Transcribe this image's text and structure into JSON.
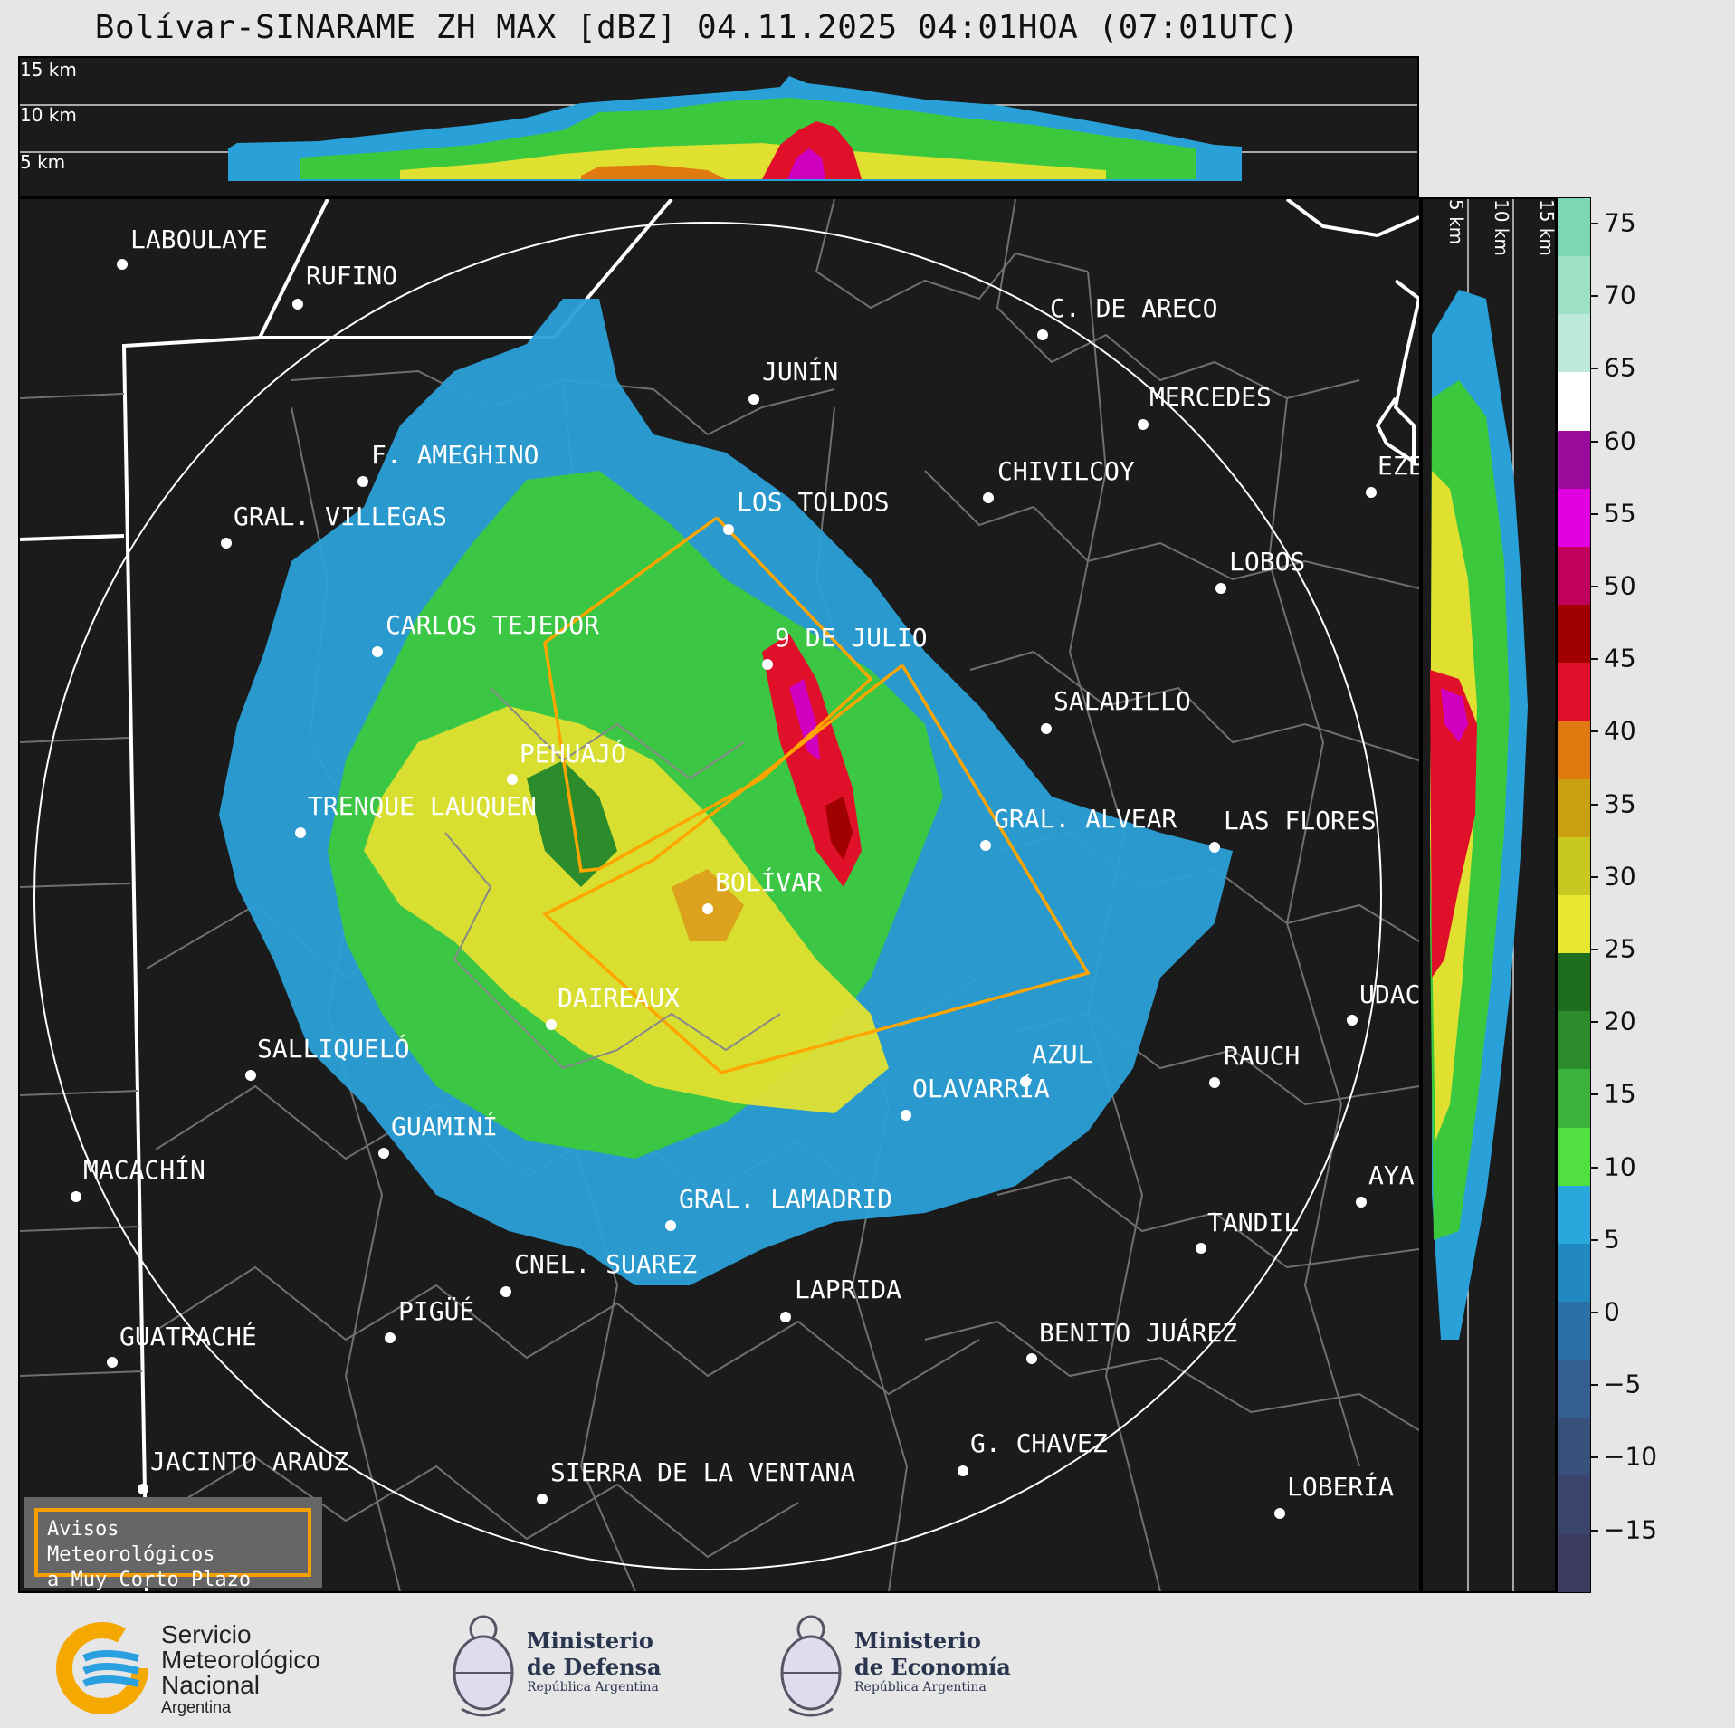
{
  "title": "Bolívar-SINARAME ZH MAX [dBZ] 04.11.2025 04:01HOA (07:01UTC)",
  "height_labels": [
    "15 km",
    "10 km",
    "5 km"
  ],
  "colorbar": {
    "unit": "dBZ",
    "ticks": [
      "75",
      "70",
      "65",
      "60",
      "55",
      "50",
      "45",
      "40",
      "35",
      "30",
      "25",
      "20",
      "15",
      "10",
      "5",
      "0",
      "−5",
      "−10",
      "−15"
    ],
    "colors": [
      "#7fd6b4",
      "#9ee0c4",
      "#bdeadb",
      "#ffffff",
      "#9b0a9b",
      "#e000e0",
      "#c0005a",
      "#a00000",
      "#e0102a",
      "#e07a10",
      "#c8a010",
      "#c8c820",
      "#e8e830",
      "#1e6e1e",
      "#2c8c2c",
      "#3cb43c",
      "#50e040",
      "#28a8dc",
      "#2288c0",
      "#2c70a8",
      "#336090",
      "#38507c",
      "#3a446c",
      "#3c3c60"
    ]
  },
  "cities": [
    {
      "name": "LABOULAYE",
      "icon": "city-dot-icon"
    },
    {
      "name": "RUFINO",
      "icon": "city-dot-icon"
    },
    {
      "name": "C. DE ARECO",
      "icon": "city-dot-icon"
    },
    {
      "name": "JUNÍN",
      "icon": "city-dot-icon"
    },
    {
      "name": "MERCEDES",
      "icon": "city-dot-icon"
    },
    {
      "name": "F. AMEGHINO",
      "icon": "city-dot-icon"
    },
    {
      "name": "CHIVILCOY",
      "icon": "city-dot-icon"
    },
    {
      "name": "EZE",
      "icon": "city-dot-icon"
    },
    {
      "name": "GRAL. VILLEGAS",
      "icon": "city-dot-icon"
    },
    {
      "name": "LOS TOLDOS",
      "icon": "city-dot-icon"
    },
    {
      "name": "LOBOS",
      "icon": "city-dot-icon"
    },
    {
      "name": "CARLOS TEJEDOR",
      "icon": "city-dot-icon"
    },
    {
      "name": "9 DE JULIO",
      "icon": "city-dot-icon"
    },
    {
      "name": "SALADILLO",
      "icon": "city-dot-icon"
    },
    {
      "name": "PEHUAJÓ",
      "icon": "city-dot-icon"
    },
    {
      "name": "TRENQUE LAUQUEN",
      "icon": "city-dot-icon"
    },
    {
      "name": "GRAL. ALVEAR",
      "icon": "city-dot-icon"
    },
    {
      "name": "LAS FLORES",
      "icon": "city-dot-icon"
    },
    {
      "name": "BOLÍVAR",
      "icon": "city-dot-icon"
    },
    {
      "name": "DAIREAUX",
      "icon": "city-dot-icon"
    },
    {
      "name": "UDAC",
      "icon": "city-dot-icon"
    },
    {
      "name": "SALLIQUELÓ",
      "icon": "city-dot-icon"
    },
    {
      "name": "AZUL",
      "icon": "city-dot-icon"
    },
    {
      "name": "RAUCH",
      "icon": "city-dot-icon"
    },
    {
      "name": "OLAVARRÍA",
      "icon": "city-dot-icon"
    },
    {
      "name": "GUAMINÍ",
      "icon": "city-dot-icon"
    },
    {
      "name": "MACACHÍN",
      "icon": "city-dot-icon"
    },
    {
      "name": "AYA",
      "icon": "city-dot-icon"
    },
    {
      "name": "GRAL. LAMADRID",
      "icon": "city-dot-icon"
    },
    {
      "name": "TANDIL",
      "icon": "city-dot-icon"
    },
    {
      "name": "CNEL. SUAREZ",
      "icon": "city-dot-icon"
    },
    {
      "name": "LAPRIDA",
      "icon": "city-dot-icon"
    },
    {
      "name": "PIGÜÉ",
      "icon": "city-dot-icon"
    },
    {
      "name": "BENITO JUÁREZ",
      "icon": "city-dot-icon"
    },
    {
      "name": "GUATRACHÉ",
      "icon": "city-dot-icon"
    },
    {
      "name": "G. CHAVEZ",
      "icon": "city-dot-icon"
    },
    {
      "name": "JACINTO ARAUZ",
      "icon": "city-dot-icon"
    },
    {
      "name": "SIERRA DE LA VENTANA",
      "icon": "city-dot-icon"
    },
    {
      "name": "LOBERÍA",
      "icon": "city-dot-icon"
    }
  ],
  "warning_box": {
    "line1": "Avisos Meteorológicos",
    "line2": "a Muy Corto Plazo"
  },
  "logos": {
    "smn": {
      "line1": "Servicio",
      "line2": "Meteorológico",
      "line3": "Nacional",
      "line4": "Argentina"
    },
    "defensa": {
      "line1": "Ministerio",
      "line2": "de Defensa",
      "line3": "República Argentina"
    },
    "economia": {
      "line1": "Ministerio",
      "line2": "de Economía",
      "line3": "República Argentina"
    }
  }
}
